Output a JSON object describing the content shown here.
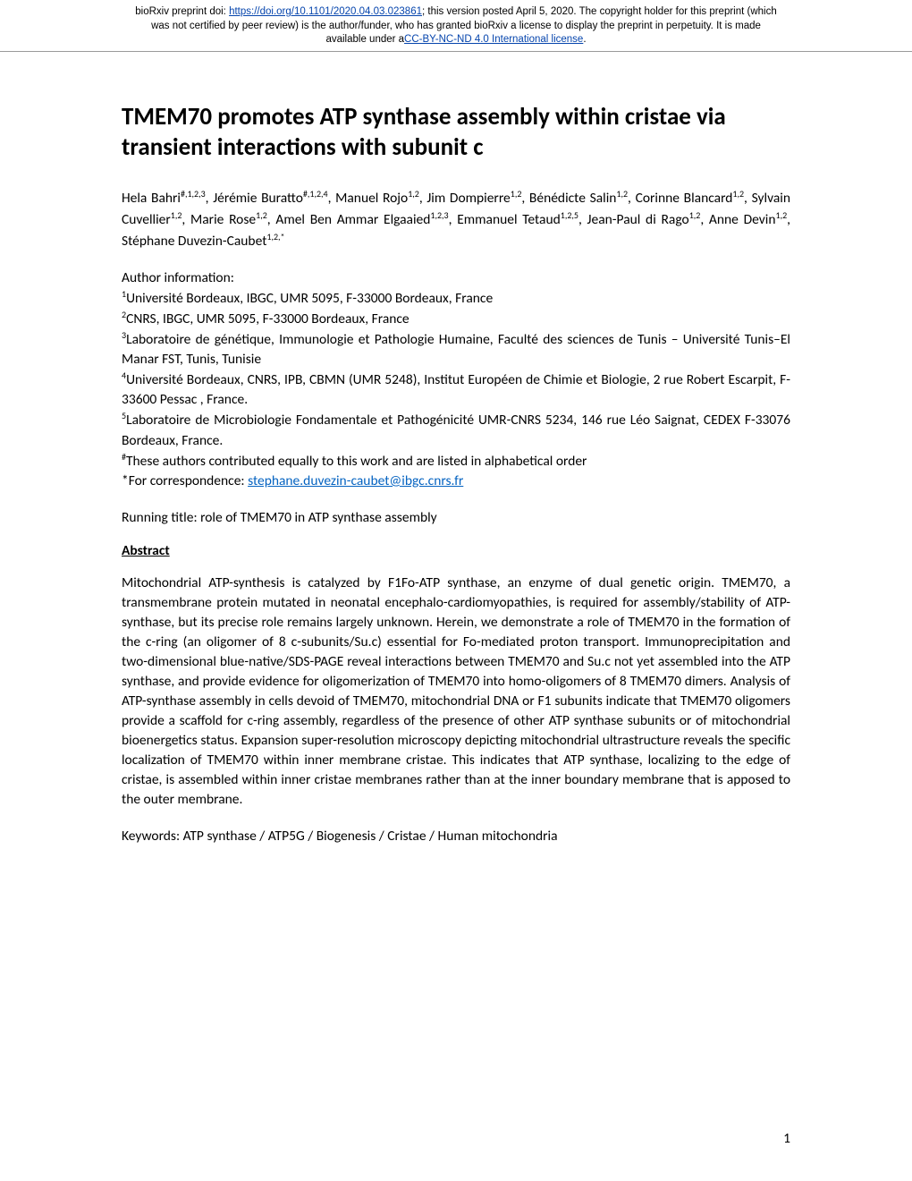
{
  "banner": {
    "line1_pre": "bioRxiv preprint doi: ",
    "doi_url": "https://doi.org/10.1101/2020.04.03.023861",
    "line1_post": "; this version posted April 5, 2020. The copyright holder for this preprint (which",
    "line2": "was not certified by peer review) is the author/funder, who has granted bioRxiv a license to display the preprint in perpetuity. It is made",
    "line3_pre": "available under a",
    "license": "CC-BY-NC-ND 4.0 International license",
    "line3_post": "."
  },
  "title": "TMEM70 promotes ATP synthase assembly within cristae via transient interactions with subunit c",
  "authors_html": "Hela Bahri<sup>#,1,2,3</sup>, Jérémie Buratto<sup>#,1,2,4</sup>, Manuel Rojo<sup>1,2</sup>, Jim Dompierre<sup>1,2</sup>, Bénédicte Salin<sup>1,2</sup>, Corinne Blancard<sup>1,2</sup>, Sylvain Cuvellier<sup>1,2</sup>, Marie Rose<sup>1,2</sup>, Amel Ben Ammar Elgaaied<sup>1,2,3</sup>, Emmanuel Tetaud<sup>1,2,5</sup>, Jean-Paul di Rago<sup>1,2</sup>, Anne Devin<sup>1,2</sup>, Stéphane Duvezin-Caubet<sup>1,2,*</sup>",
  "info": {
    "heading": "Author information:",
    "aff1": "Université Bordeaux, IBGC, UMR 5095, F-33000 Bordeaux, France",
    "aff2": "CNRS, IBGC, UMR 5095, F-33000 Bordeaux, France",
    "aff3": "Laboratoire de génétique, Immunologie et Pathologie Humaine, Faculté des sciences de Tunis – Université Tunis–El Manar FST, Tunis, Tunisie",
    "aff4": "Université Bordeaux, CNRS, IPB, CBMN (UMR 5248), Institut Européen de Chimie et Biologie, 2 rue Robert Escarpit, F-33600 Pessac , France.",
    "aff5": "Laboratoire de Microbiologie Fondamentale et Pathogénicité UMR-CNRS 5234, 146 rue Léo Saignat, CEDEX F-33076 Bordeaux, France.",
    "equal": "These authors contributed equally to this work and are listed in alphabetical order",
    "corresp_pre": "*For correspondence: ",
    "corresp_email": "stephane.duvezin-caubet@ibgc.cnrs.fr"
  },
  "running_title": "Running title: role of TMEM70 in ATP synthase assembly",
  "abstract_heading": "Abstract",
  "abstract_body": "Mitochondrial ATP-synthesis is catalyzed by F1Fo-ATP synthase, an enzyme of dual genetic origin. TMEM70, a transmembrane protein mutated in neonatal encephalo-cardiomyopathies, is required for assembly/stability of ATP-synthase, but its precise role remains largely unknown. Herein, we demonstrate a role of TMEM70 in the formation of the c-ring (an oligomer of 8 c-subunits/Su.c) essential for Fo-mediated proton transport. Immunoprecipitation and two-dimensional blue-native/SDS-PAGE reveal interactions between TMEM70 and Su.c not yet assembled into the ATP synthase, and provide evidence for oligomerization of TMEM70 into homo-oligomers of 8 TMEM70 dimers. Analysis of ATP-synthase assembly in cells devoid of TMEM70, mitochondrial DNA or F1 subunits indicate that TMEM70 oligomers provide a scaffold for c-ring assembly, regardless of the presence of other ATP synthase subunits or of mitochondrial bioenergetics status. Expansion super-resolution microscopy depicting mitochondrial ultrastructure reveals the specific localization of TMEM70 within inner membrane cristae. This indicates that ATP synthase, localizing to the edge of cristae, is assembled within inner cristae membranes rather than at the inner boundary membrane that is apposed to the outer membrane.",
  "keywords": "Keywords: ATP synthase / ATP5G / Biogenesis / Cristae / Human mitochondria",
  "page_number": "1"
}
